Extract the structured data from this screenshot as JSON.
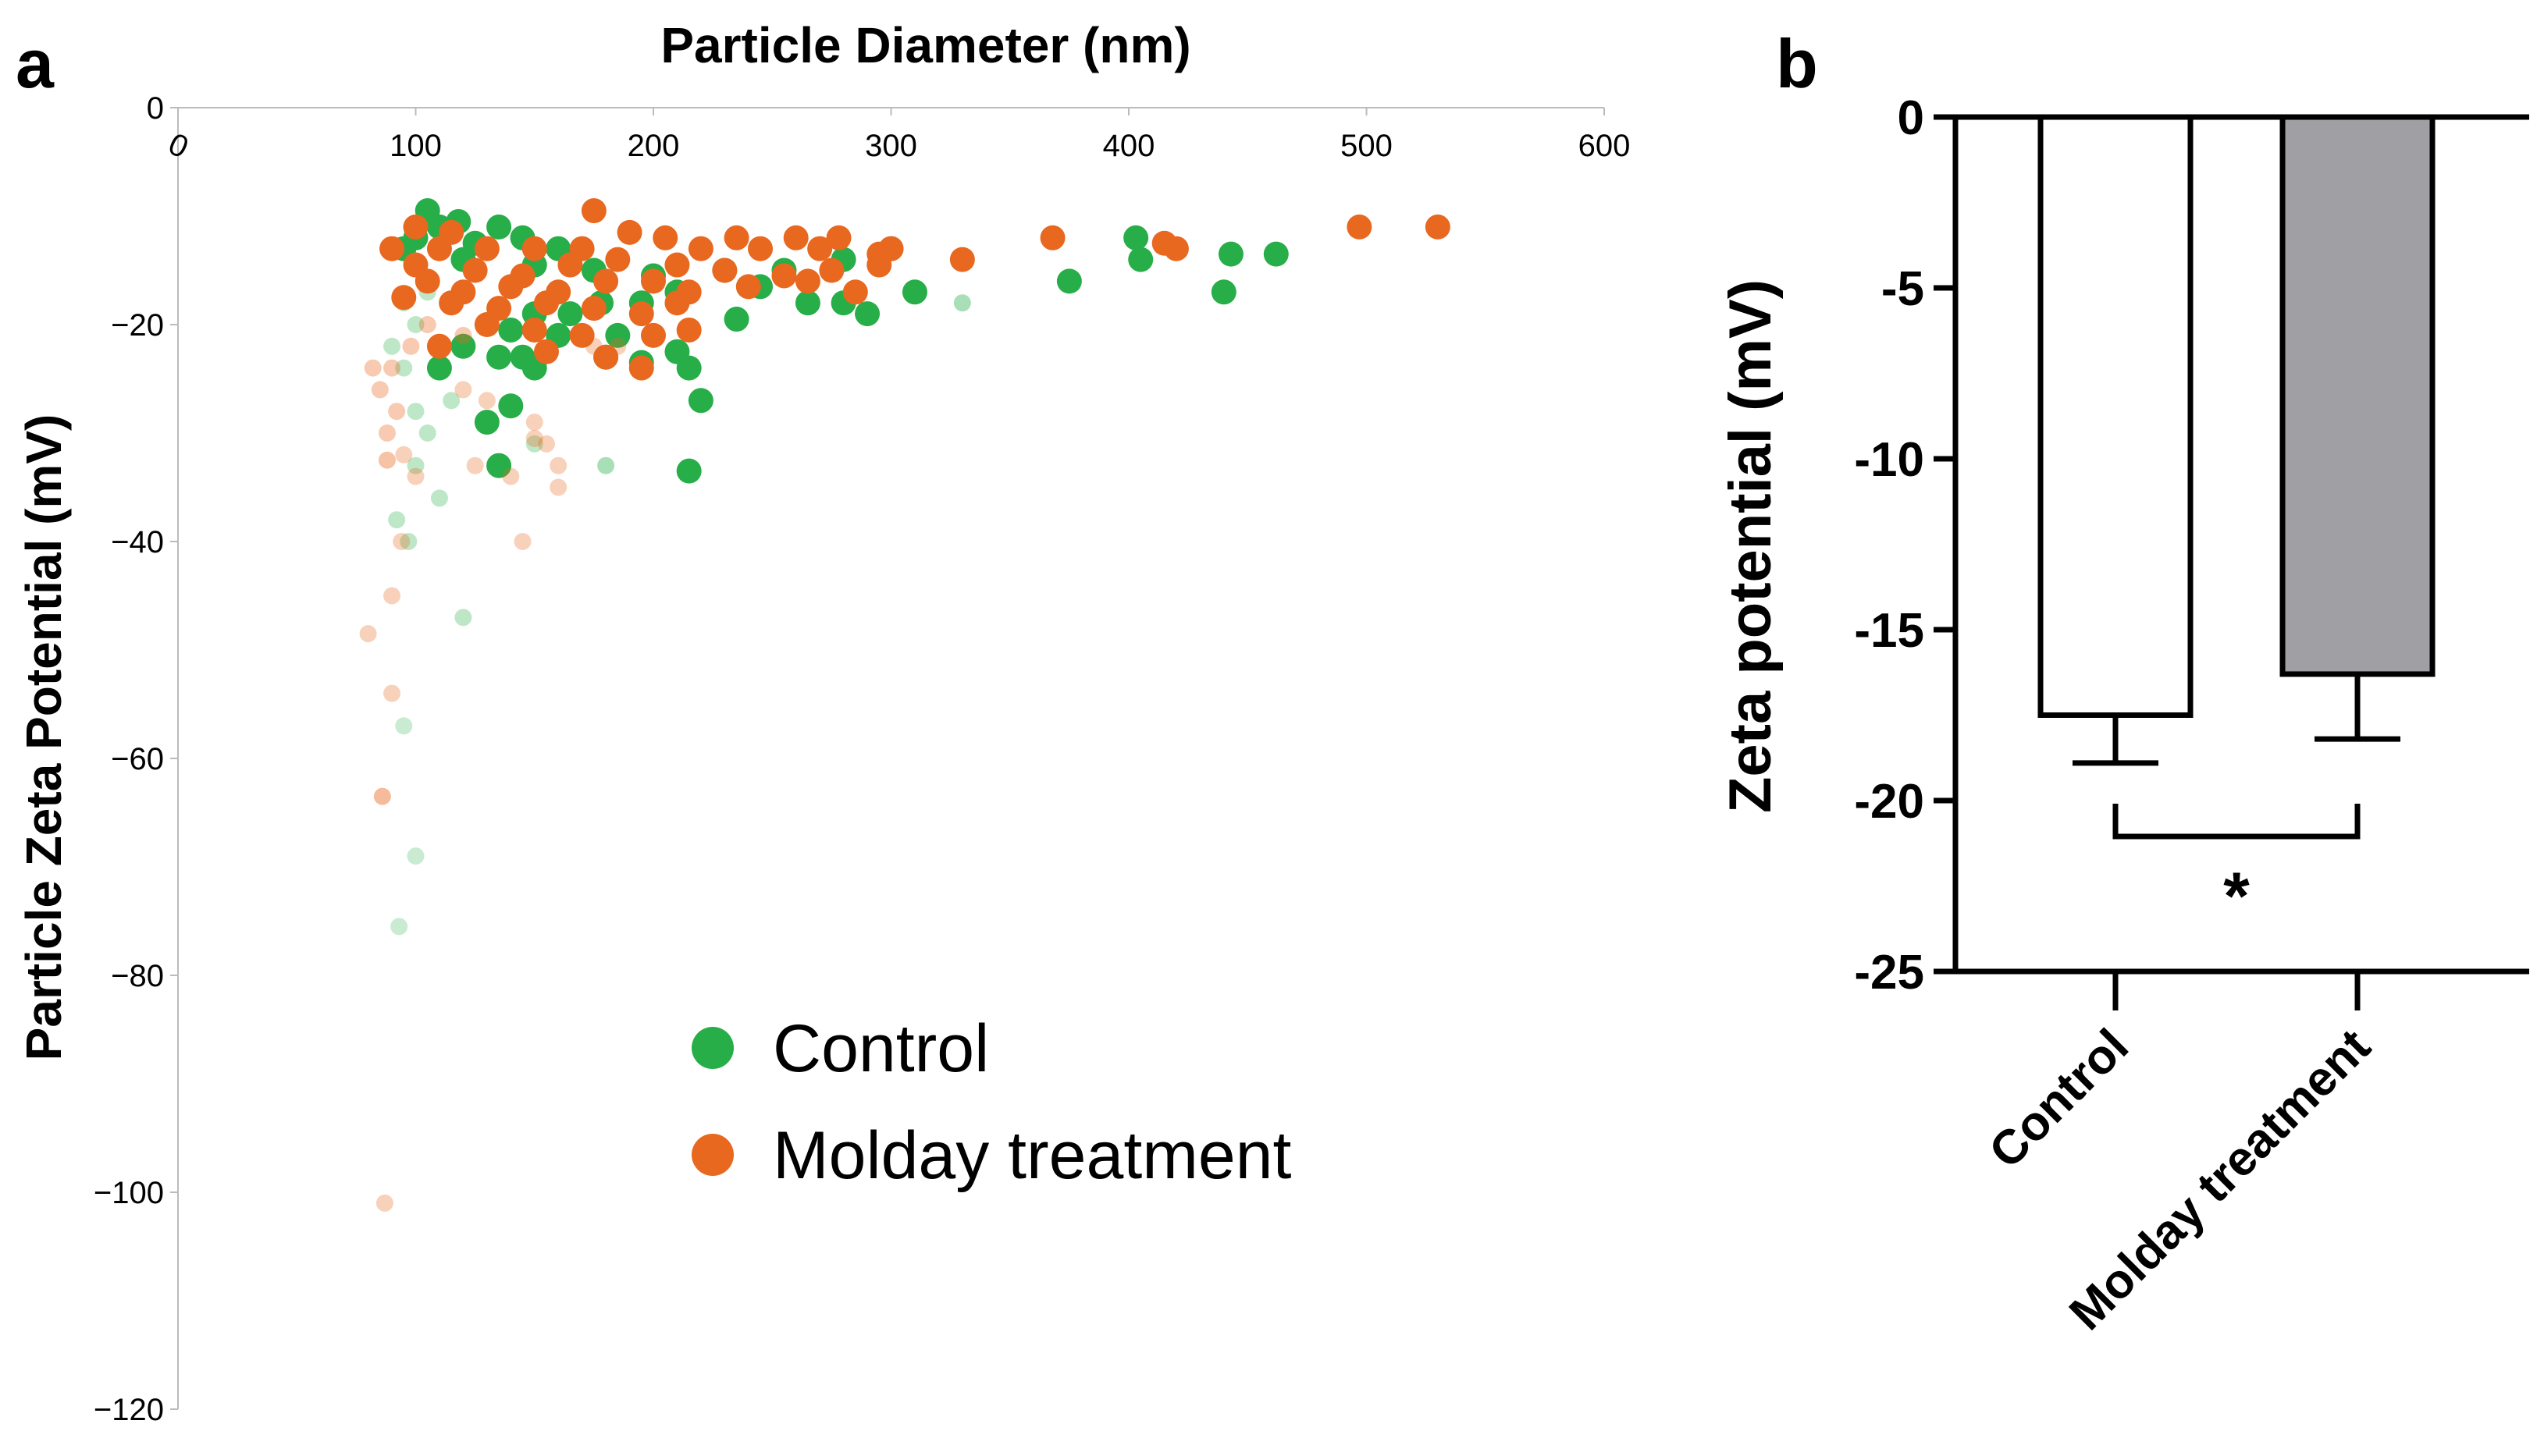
{
  "chart_data": [
    {
      "panel": "a",
      "type": "scatter",
      "xlabel": "Particle Diameter (nm)",
      "ylabel": "Particle Zeta Potential (mV)",
      "xlim": [
        0,
        600
      ],
      "ylim": [
        -120,
        0
      ],
      "x_ticks": [
        "0",
        "100",
        "200",
        "300",
        "400",
        "500",
        "600"
      ],
      "y_ticks": [
        "0",
        "−20",
        "−40",
        "−60",
        "−80",
        "−100",
        "−120"
      ],
      "legend_position": "lower-center",
      "colors": {
        "Control": "#27ae48",
        "Molday treatment": "#e8681f"
      },
      "series": [
        {
          "name": "Control",
          "color": "#27ae48",
          "points": [
            [
              105,
              -9.5,
              1
            ],
            [
              110,
              -11,
              1
            ],
            [
              118,
              -10.5,
              1
            ],
            [
              135,
              -11,
              1
            ],
            [
              100,
              -12,
              1
            ],
            [
              125,
              -12.5,
              1
            ],
            [
              145,
              -12,
              1
            ],
            [
              160,
              -13,
              1
            ],
            [
              95,
              -13,
              1
            ],
            [
              120,
              -14,
              1
            ],
            [
              150,
              -14.5,
              1
            ],
            [
              175,
              -15,
              1
            ],
            [
              200,
              -15.5,
              1
            ],
            [
              230,
              -15,
              1
            ],
            [
              255,
              -15,
              1
            ],
            [
              280,
              -14,
              1
            ],
            [
              300,
              -13,
              1
            ],
            [
              210,
              -17,
              1
            ],
            [
              245,
              -16.5,
              1
            ],
            [
              265,
              -18,
              1
            ],
            [
              280,
              -18,
              1
            ],
            [
              290,
              -19,
              1
            ],
            [
              310,
              -17,
              1
            ],
            [
              235,
              -19.5,
              1
            ],
            [
              195,
              -18,
              1
            ],
            [
              178,
              -18,
              1
            ],
            [
              165,
              -19,
              1
            ],
            [
              150,
              -19,
              1
            ],
            [
              140,
              -20.5,
              1
            ],
            [
              160,
              -21,
              1
            ],
            [
              185,
              -21,
              1
            ],
            [
              210,
              -22.5,
              1
            ],
            [
              120,
              -22,
              1
            ],
            [
              135,
              -23,
              1
            ],
            [
              145,
              -23,
              1
            ],
            [
              180,
              -23,
              1
            ],
            [
              195,
              -23.5,
              1
            ],
            [
              215,
              -24,
              1
            ],
            [
              150,
              -24,
              1
            ],
            [
              110,
              -24,
              1
            ],
            [
              140,
              -27.5,
              1
            ],
            [
              220,
              -27,
              1
            ],
            [
              130,
              -29,
              1
            ],
            [
              135,
              -33,
              1
            ],
            [
              215,
              -33.5,
              1
            ],
            [
              375,
              -16,
              1
            ],
            [
              403,
              -12,
              1
            ],
            [
              405,
              -14,
              1
            ],
            [
              440,
              -17,
              1
            ],
            [
              443,
              -13.5,
              1
            ],
            [
              462,
              -13.5,
              1
            ],
            [
              330,
              -18,
              0.4
            ],
            [
              180,
              -33,
              0.4
            ],
            [
              150,
              -31,
              0.3
            ],
            [
              95,
              -24,
              0.3
            ],
            [
              100,
              -28,
              0.3
            ],
            [
              105,
              -30,
              0.3
            ],
            [
              100,
              -33,
              0.3
            ],
            [
              92,
              -38,
              0.3
            ],
            [
              97,
              -40,
              0.3
            ],
            [
              120,
              -47,
              0.3
            ],
            [
              95,
              -57,
              0.25
            ],
            [
              100,
              -69,
              0.25
            ],
            [
              93,
              -75.5,
              0.25
            ],
            [
              110,
              -36,
              0.3
            ],
            [
              115,
              -27,
              0.3
            ],
            [
              90,
              -22,
              0.3
            ],
            [
              95,
              -18,
              0.3
            ],
            [
              100,
              -20,
              0.3
            ],
            [
              105,
              -17,
              0.3
            ]
          ]
        },
        {
          "name": "Molday treatment",
          "color": "#e8681f",
          "points": [
            [
              175,
              -9.5,
              1
            ],
            [
              100,
              -11,
              1
            ],
            [
              115,
              -11.5,
              1
            ],
            [
              190,
              -11.5,
              1
            ],
            [
              205,
              -12,
              1
            ],
            [
              235,
              -12,
              1
            ],
            [
              260,
              -12,
              1
            ],
            [
              278,
              -12,
              1
            ],
            [
              90,
              -13,
              1
            ],
            [
              110,
              -13,
              1
            ],
            [
              130,
              -13,
              1
            ],
            [
              150,
              -13,
              1
            ],
            [
              170,
              -13,
              1
            ],
            [
              220,
              -13,
              1
            ],
            [
              245,
              -13,
              1
            ],
            [
              270,
              -13,
              1
            ],
            [
              295,
              -13.5,
              1
            ],
            [
              300,
              -13,
              1
            ],
            [
              100,
              -14.5,
              1
            ],
            [
              125,
              -15,
              1
            ],
            [
              145,
              -15.5,
              1
            ],
            [
              165,
              -14.5,
              1
            ],
            [
              185,
              -14,
              1
            ],
            [
              210,
              -14.5,
              1
            ],
            [
              230,
              -15,
              1
            ],
            [
              255,
              -15.5,
              1
            ],
            [
              275,
              -15,
              1
            ],
            [
              295,
              -14.5,
              1
            ],
            [
              105,
              -16,
              1
            ],
            [
              120,
              -17,
              1
            ],
            [
              140,
              -16.5,
              1
            ],
            [
              160,
              -17,
              1
            ],
            [
              180,
              -16,
              1
            ],
            [
              200,
              -16,
              1
            ],
            [
              215,
              -17,
              1
            ],
            [
              240,
              -16.5,
              1
            ],
            [
              265,
              -16,
              1
            ],
            [
              285,
              -17,
              1
            ],
            [
              95,
              -17.5,
              1
            ],
            [
              115,
              -18,
              1
            ],
            [
              135,
              -18.5,
              1
            ],
            [
              155,
              -18,
              1
            ],
            [
              175,
              -18.5,
              1
            ],
            [
              195,
              -19,
              1
            ],
            [
              210,
              -18,
              1
            ],
            [
              130,
              -20,
              1
            ],
            [
              150,
              -20.5,
              1
            ],
            [
              170,
              -21,
              1
            ],
            [
              200,
              -21,
              1
            ],
            [
              215,
              -20.5,
              1
            ],
            [
              110,
              -22,
              1
            ],
            [
              155,
              -22.5,
              1
            ],
            [
              180,
              -23,
              1
            ],
            [
              195,
              -24,
              1
            ],
            [
              330,
              -14,
              1
            ],
            [
              368,
              -12,
              1
            ],
            [
              415,
              -12.5,
              1
            ],
            [
              420,
              -13,
              1
            ],
            [
              497,
              -11,
              1
            ],
            [
              530,
              -11,
              1
            ],
            [
              90,
              -24,
              0.35
            ],
            [
              85,
              -26,
              0.35
            ],
            [
              92,
              -28,
              0.35
            ],
            [
              88,
              -30,
              0.35
            ],
            [
              95,
              -32,
              0.3
            ],
            [
              100,
              -34,
              0.3
            ],
            [
              120,
              -26,
              0.3
            ],
            [
              130,
              -27,
              0.3
            ],
            [
              150,
              -29,
              0.3
            ],
            [
              150,
              -30.5,
              0.3
            ],
            [
              155,
              -31,
              0.3
            ],
            [
              140,
              -34,
              0.3
            ],
            [
              160,
              -33,
              0.3
            ],
            [
              160,
              -35,
              0.3
            ],
            [
              145,
              -40,
              0.3
            ],
            [
              94,
              -40,
              0.3
            ],
            [
              88,
              -32.5,
              0.4
            ],
            [
              90,
              -45,
              0.3
            ],
            [
              80,
              -48.5,
              0.3
            ],
            [
              90,
              -54,
              0.3
            ],
            [
              86,
              -63.5,
              0.45
            ],
            [
              87,
              -101,
              0.3
            ],
            [
              82,
              -24,
              0.35
            ],
            [
              98,
              -22,
              0.35
            ],
            [
              105,
              -20,
              0.35
            ],
            [
              120,
              -21,
              0.35
            ],
            [
              175,
              -22,
              0.3
            ],
            [
              185,
              -22,
              0.3
            ],
            [
              125,
              -33,
              0.3
            ]
          ]
        }
      ]
    },
    {
      "panel": "b",
      "type": "bar",
      "ylabel": "Zeta potential (mV)",
      "ylim": [
        -25,
        0
      ],
      "y_ticks": [
        "0",
        "-5",
        "-10",
        "-15",
        "-20",
        "-25"
      ],
      "categories": [
        "Control",
        "Molday treatment"
      ],
      "values": [
        -17.5,
        -16.3
      ],
      "errors": [
        1.4,
        1.9
      ],
      "bar_colors": [
        "#ffffff",
        "#a0a0a4"
      ],
      "significance": "*"
    }
  ]
}
